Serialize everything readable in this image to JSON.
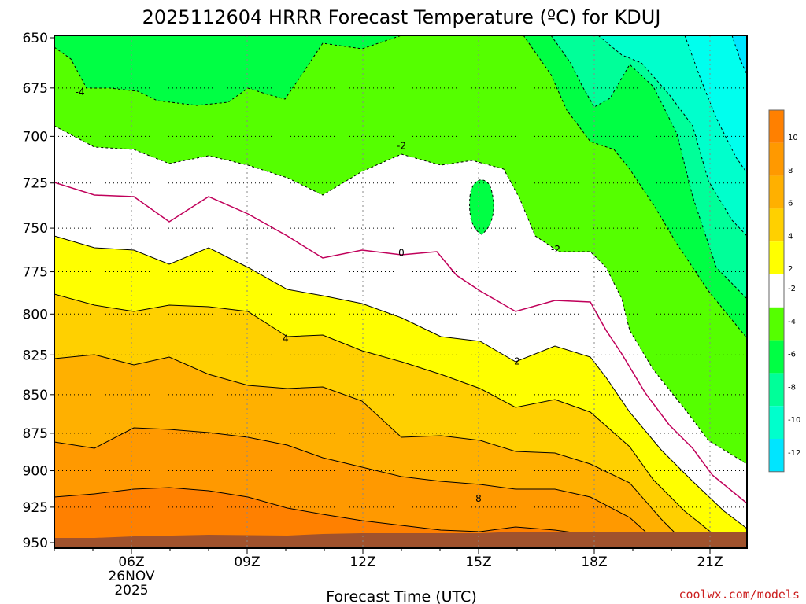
{
  "chart_data": {
    "type": "heatmap",
    "title": "2025112604 HRRR Forecast Temperature (ºC) for KDUJ",
    "xlabel": "Forecast Time (UTC)",
    "ylabel": "",
    "x_ticks": [
      "06Z",
      "09Z",
      "12Z",
      "15Z",
      "18Z",
      "21Z"
    ],
    "x_first_tick_date": [
      "26NOV",
      "2025"
    ],
    "y_ticks": [
      650,
      675,
      700,
      725,
      750,
      775,
      800,
      825,
      850,
      875,
      900,
      925,
      950
    ],
    "ylim": [
      650,
      950
    ],
    "y_scale": "log-pressure",
    "grid": true,
    "colorbar": {
      "ticks": [
        "10",
        "8",
        "6",
        "4",
        "2",
        "-2",
        "-4",
        "-6",
        "-8",
        "-10",
        "-12"
      ],
      "colors": [
        "#ff8000",
        "#ff9900",
        "#ffb000",
        "#ffd000",
        "#ffff00",
        "#ffffff",
        "#55ff00",
        "#00ff44",
        "#00ff99",
        "#00ffcc",
        "#00e5ff"
      ]
    },
    "contour_labels": [
      {
        "text": "-4",
        "time": "04:40Z",
        "level": 677
      },
      {
        "text": "-2",
        "time": "13:00Z",
        "level": 705
      },
      {
        "text": "0",
        "time": "13:00Z",
        "level": 764
      },
      {
        "text": "-2",
        "time": "17:00Z",
        "level": 762
      },
      {
        "text": "4",
        "time": "10:00Z",
        "level": 815
      },
      {
        "text": "2",
        "time": "16:00Z",
        "level": 829
      },
      {
        "text": "8",
        "time": "15:00Z",
        "level": 919
      }
    ],
    "fill_colors": {
      "t10": "#ff8000",
      "t8": "#ff9900",
      "t6": "#ffb000",
      "t4": "#ffd000",
      "t2": "#ffff00",
      "t0": "#ffffff",
      "tm2": "#55ff00",
      "tm4": "#00ff44",
      "tm6": "#00ff99",
      "tm8": "#00ffcc",
      "tm10": "#00ffee",
      "tm12": "#00e5ff",
      "ground": "#a0522d",
      "zero_line": "#c0005a"
    }
  },
  "credit": "coolwx.com/models"
}
